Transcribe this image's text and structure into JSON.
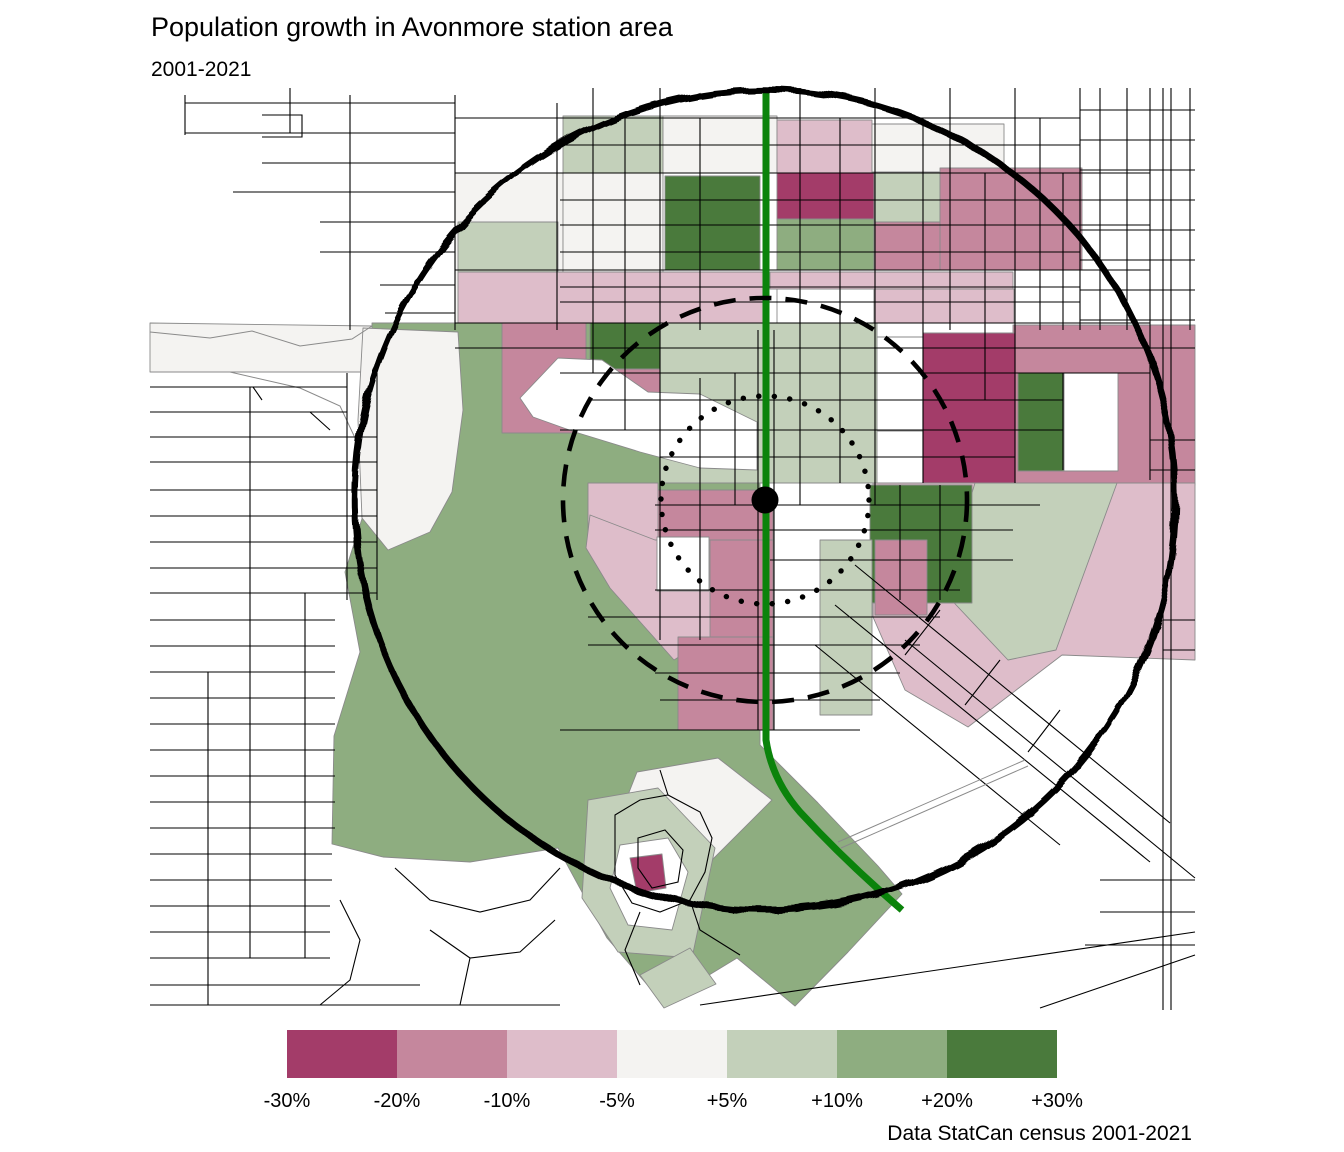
{
  "header": {
    "title": "Population growth in Avonmore station area",
    "subtitle": "2001-2021"
  },
  "legend": {
    "colors": [
      "#a33c69",
      "#c5879d",
      "#debdca",
      "#f4f3f1",
      "#c3d0ba",
      "#8ead80",
      "#4a7a3c"
    ],
    "labels": [
      "-30%",
      "-20%",
      "-10%",
      "-5%",
      "+5%",
      "+10%",
      "+20%",
      "+30%"
    ]
  },
  "caption": "Data StatCan census 2001-2021",
  "map": {
    "road_color": "#000000",
    "tract_border_color": "#8a8a8a",
    "transit_line_color": "#0b830b",
    "ring_color": "#000000",
    "station_marker_color": "#000000",
    "rings": [
      {
        "name": "outer-walkshed-ring",
        "style": "solid"
      },
      {
        "name": "middle-walkshed-ring",
        "style": "dashed"
      },
      {
        "name": "inner-walkshed-ring",
        "style": "dotted"
      }
    ]
  }
}
